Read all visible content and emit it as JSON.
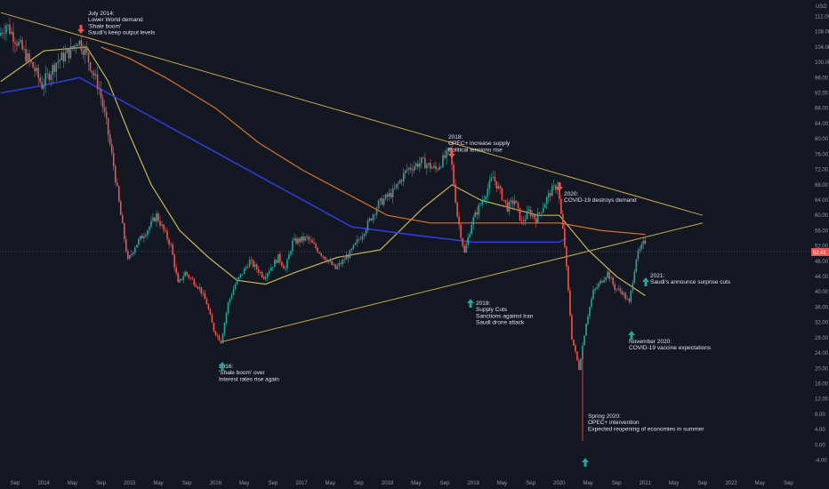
{
  "axis": {
    "currency": "USD",
    "last_price_label": "52.61"
  },
  "colors": {
    "background": "#131722",
    "candle_up": "#26a69a",
    "candle_down": "#ef5350",
    "sma_short": "#c9b458",
    "sma_long": "#d9742a",
    "sma_blue": "#2f3bd6",
    "trendline": "#c9a94a",
    "arrow_up": "#26a69a",
    "arrow_down": "#ef5350",
    "price_tag": "#ef5350"
  },
  "annotations": [
    {
      "id": "jul2014",
      "lines": [
        "July 2014:",
        "Lower World demand",
        "'Shale boom'",
        "Saudi's keep output levels"
      ],
      "arrow": "down"
    },
    {
      "id": "feb2016",
      "lines": [
        "2016:",
        "'Shale boom' over",
        "Interest rates rise again"
      ],
      "arrow": "up"
    },
    {
      "id": "oct2018",
      "lines": [
        "2018:",
        "OPEC+ increase supply",
        "Political tensions rise"
      ],
      "arrow": "down"
    },
    {
      "id": "jan2019",
      "lines": [
        "2019:",
        "Supply Cuts",
        "Sanctions against Iran",
        "Saudi drone attack"
      ],
      "arrow": "up"
    },
    {
      "id": "jan2020",
      "lines": [
        "2020:",
        "COVID-19 destroys demand"
      ],
      "arrow": "down"
    },
    {
      "id": "apr2020",
      "lines": [
        "Spring 2020:",
        "OPEC+ intervention",
        "Expected reopening of economies in summer"
      ],
      "arrow": "up"
    },
    {
      "id": "nov2020",
      "lines": [
        "November 2020:",
        "COVID-19 vaccine expectations"
      ],
      "arrow": "up"
    },
    {
      "id": "jan2021",
      "lines": [
        "2021:",
        "Saudi's announce surprise cuts"
      ],
      "arrow": "up"
    }
  ],
  "chart_data": {
    "type": "candlestick",
    "instrument_currency": "USD",
    "y_range": [
      -4,
      118
    ],
    "y_ticks": [
      "112.00",
      "108.00",
      "104.00",
      "100.00",
      "96.00",
      "92.00",
      "88.00",
      "84.00",
      "80.00",
      "76.00",
      "72.00",
      "68.00",
      "64.00",
      "60.00",
      "56.00",
      "52.00",
      "48.00",
      "44.00",
      "40.00",
      "36.00",
      "32.00",
      "28.00",
      "24.00",
      "20.00",
      "16.00",
      "12.00",
      "8.00",
      "4.00",
      "0.00",
      "-4.00"
    ],
    "x_ticks": [
      "Sep",
      "2014",
      "May",
      "Sep",
      "2015",
      "May",
      "Sep",
      "2016",
      "May",
      "Sep",
      "2017",
      "May",
      "Sep",
      "2018",
      "May",
      "Sep",
      "2019",
      "May",
      "Sep",
      "2020",
      "May",
      "Sep",
      "2021",
      "May",
      "Sep",
      "2022",
      "May",
      "Sep"
    ],
    "x_tick_dates": [
      "2013-09",
      "2014-01",
      "2014-05",
      "2014-09",
      "2015-01",
      "2015-05",
      "2015-09",
      "2016-01",
      "2016-05",
      "2016-09",
      "2017-01",
      "2017-05",
      "2017-09",
      "2018-01",
      "2018-05",
      "2018-09",
      "2019-01",
      "2019-05",
      "2019-09",
      "2020-01",
      "2020-05",
      "2020-09",
      "2021-01",
      "2021-05",
      "2021-09",
      "2022-01",
      "2022-05",
      "2022-09"
    ],
    "date_range": [
      "2013-07",
      "2022-10"
    ],
    "last_price": 52.61,
    "price_path": [
      {
        "date": "2013-07",
        "price": 107
      },
      {
        "date": "2013-08",
        "price": 110
      },
      {
        "date": "2013-10",
        "price": 104
      },
      {
        "date": "2013-12",
        "price": 98
      },
      {
        "date": "2014-01",
        "price": 94
      },
      {
        "date": "2014-03",
        "price": 100
      },
      {
        "date": "2014-05",
        "price": 103
      },
      {
        "date": "2014-06",
        "price": 106
      },
      {
        "date": "2014-07",
        "price": 103
      },
      {
        "date": "2014-09",
        "price": 93
      },
      {
        "date": "2014-10",
        "price": 84
      },
      {
        "date": "2014-11",
        "price": 73
      },
      {
        "date": "2014-12",
        "price": 60
      },
      {
        "date": "2015-01",
        "price": 48
      },
      {
        "date": "2015-02",
        "price": 52
      },
      {
        "date": "2015-04",
        "price": 57
      },
      {
        "date": "2015-05",
        "price": 60
      },
      {
        "date": "2015-07",
        "price": 52
      },
      {
        "date": "2015-08",
        "price": 42
      },
      {
        "date": "2015-09",
        "price": 45
      },
      {
        "date": "2015-11",
        "price": 41
      },
      {
        "date": "2015-12",
        "price": 37
      },
      {
        "date": "2016-01",
        "price": 30
      },
      {
        "date": "2016-02",
        "price": 27
      },
      {
        "date": "2016-03",
        "price": 37
      },
      {
        "date": "2016-04",
        "price": 42
      },
      {
        "date": "2016-06",
        "price": 48
      },
      {
        "date": "2016-08",
        "price": 44
      },
      {
        "date": "2016-10",
        "price": 49
      },
      {
        "date": "2016-11",
        "price": 46
      },
      {
        "date": "2016-12",
        "price": 53
      },
      {
        "date": "2017-02",
        "price": 54
      },
      {
        "date": "2017-04",
        "price": 50
      },
      {
        "date": "2017-06",
        "price": 46
      },
      {
        "date": "2017-08",
        "price": 50
      },
      {
        "date": "2017-10",
        "price": 56
      },
      {
        "date": "2017-12",
        "price": 63
      },
      {
        "date": "2018-02",
        "price": 66
      },
      {
        "date": "2018-04",
        "price": 72
      },
      {
        "date": "2018-06",
        "price": 74
      },
      {
        "date": "2018-08",
        "price": 72
      },
      {
        "date": "2018-10",
        "price": 77
      },
      {
        "date": "2018-11",
        "price": 60
      },
      {
        "date": "2018-12",
        "price": 50
      },
      {
        "date": "2019-01",
        "price": 58
      },
      {
        "date": "2019-03",
        "price": 66
      },
      {
        "date": "2019-04",
        "price": 70
      },
      {
        "date": "2019-06",
        "price": 62
      },
      {
        "date": "2019-07",
        "price": 64
      },
      {
        "date": "2019-08",
        "price": 58
      },
      {
        "date": "2019-09",
        "price": 61
      },
      {
        "date": "2019-10",
        "price": 59
      },
      {
        "date": "2019-12",
        "price": 66
      },
      {
        "date": "2020-01",
        "price": 68
      },
      {
        "date": "2020-02",
        "price": 52
      },
      {
        "date": "2020-03",
        "price": 28
      },
      {
        "date": "2020-04",
        "price": 20
      },
      {
        "date": "2020-05",
        "price": 32
      },
      {
        "date": "2020-06",
        "price": 40
      },
      {
        "date": "2020-08",
        "price": 45
      },
      {
        "date": "2020-09",
        "price": 41
      },
      {
        "date": "2020-10",
        "price": 40
      },
      {
        "date": "2020-11",
        "price": 37
      },
      {
        "date": "2020-12",
        "price": 49
      },
      {
        "date": "2021-01",
        "price": 52.61
      }
    ],
    "moving_averages": [
      {
        "name": "",
        "color": "#c9b458",
        "points": [
          {
            "date": "2013-07",
            "price": 95
          },
          {
            "date": "2014-01",
            "price": 103
          },
          {
            "date": "2014-07",
            "price": 104
          },
          {
            "date": "2014-10",
            "price": 95
          },
          {
            "date": "2015-01",
            "price": 81
          },
          {
            "date": "2015-04",
            "price": 68
          },
          {
            "date": "2015-08",
            "price": 56
          },
          {
            "date": "2015-12",
            "price": 49
          },
          {
            "date": "2016-04",
            "price": 43
          },
          {
            "date": "2016-08",
            "price": 42
          },
          {
            "date": "2016-12",
            "price": 45
          },
          {
            "date": "2017-06",
            "price": 49
          },
          {
            "date": "2017-12",
            "price": 51
          },
          {
            "date": "2018-06",
            "price": 62
          },
          {
            "date": "2018-10",
            "price": 68
          },
          {
            "date": "2019-02",
            "price": 64
          },
          {
            "date": "2019-06",
            "price": 62
          },
          {
            "date": "2019-10",
            "price": 60
          },
          {
            "date": "2020-01",
            "price": 60
          },
          {
            "date": "2020-05",
            "price": 51
          },
          {
            "date": "2020-09",
            "price": 44
          },
          {
            "date": "2021-01",
            "price": 39
          }
        ]
      },
      {
        "name": "",
        "color": "#d9742a",
        "points": [
          {
            "date": "2014-09",
            "price": 104
          },
          {
            "date": "2015-01",
            "price": 101
          },
          {
            "date": "2015-06",
            "price": 96
          },
          {
            "date": "2016-01",
            "price": 88
          },
          {
            "date": "2016-07",
            "price": 79
          },
          {
            "date": "2017-01",
            "price": 72
          },
          {
            "date": "2017-07",
            "price": 66
          },
          {
            "date": "2018-01",
            "price": 60
          },
          {
            "date": "2018-07",
            "price": 58
          },
          {
            "date": "2019-01",
            "price": 58
          },
          {
            "date": "2019-07",
            "price": 58
          },
          {
            "date": "2020-01",
            "price": 58
          },
          {
            "date": "2020-07",
            "price": 56
          },
          {
            "date": "2021-01",
            "price": 55
          }
        ]
      },
      {
        "name": "",
        "color": "#2f3bd6",
        "points": [
          {
            "date": "2013-07",
            "price": 92
          },
          {
            "date": "2014-01",
            "price": 94
          },
          {
            "date": "2014-06",
            "price": 96
          },
          {
            "date": "2017-08",
            "price": 57
          },
          {
            "date": "2018-04",
            "price": 55
          },
          {
            "date": "2019-01",
            "price": 53
          },
          {
            "date": "2019-07",
            "price": 53
          },
          {
            "date": "2020-01",
            "price": 53
          },
          {
            "date": "2020-02",
            "price": 54
          }
        ]
      }
    ],
    "trendlines": [
      {
        "from": {
          "date": "2013-07",
          "price": 113
        },
        "to": {
          "date": "2021-09",
          "price": 60
        }
      },
      {
        "from": {
          "date": "2016-02",
          "price": 27
        },
        "to": {
          "date": "2021-09",
          "price": 58
        }
      }
    ]
  }
}
